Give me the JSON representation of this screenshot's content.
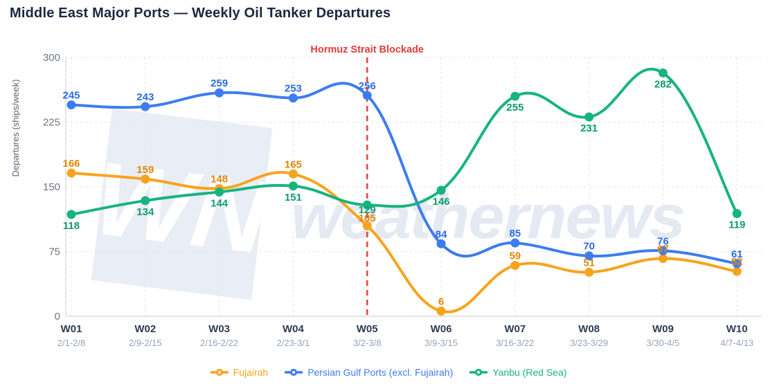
{
  "title": "Middle East Major Ports — Weekly Oil Tanker Departures",
  "watermark": {
    "logo_text": "WN",
    "brand_text": "weathernews",
    "logo_bg_color": "#e9edf5",
    "logo_text_color": "#ffffff",
    "brand_text_color": "#e4e9f2"
  },
  "annotation": {
    "label": "Hormuz Strait Blockade",
    "week_index": 4,
    "line_color": "#e8463f",
    "label_color": "#e23b3b"
  },
  "chart_data": {
    "type": "line",
    "title": "Middle East Major Ports — Weekly Oil Tanker Departures",
    "categories": [
      "W01",
      "W02",
      "W03",
      "W04",
      "W05",
      "W06",
      "W07",
      "W08",
      "W09",
      "W10"
    ],
    "category_dates": [
      "2/1-2/8",
      "2/9-2/15",
      "2/16-2/22",
      "2/23-3/1",
      "3/2-3/8",
      "3/9-3/15",
      "3/16-3/22",
      "3/23-3/29",
      "3/30-4/5",
      "4/7-4/13"
    ],
    "xlabel": "",
    "ylabel": "Departures (ships/week)",
    "ylim": [
      0,
      300
    ],
    "yticks": [
      0,
      75,
      150,
      225,
      300
    ],
    "grid": true,
    "legend_position": "bottom",
    "series": [
      {
        "name": "Fujairah",
        "color": "#f7a41c",
        "label_color": "#e1860a",
        "values": [
          166,
          159,
          148,
          165,
          105,
          6,
          59,
          51,
          67,
          52
        ],
        "label_anchor": "above",
        "label_offsets": {
          "4": 3
        }
      },
      {
        "name": "Persian Gulf Ports (excl. Fujairah)",
        "color": "#3d7cf0",
        "label_color": "#2c6be6",
        "values": [
          245,
          243,
          259,
          253,
          256,
          84,
          85,
          70,
          76,
          61
        ],
        "label_anchor": "above",
        "label_offsets": {}
      },
      {
        "name": "Yanbu (Red Sea)",
        "color": "#17b47e",
        "label_color": "#0f9c6b",
        "values": [
          118,
          134,
          144,
          151,
          129,
          146,
          255,
          231,
          282,
          119
        ],
        "label_anchor": "below",
        "label_offsets": {
          "4": -9
        }
      }
    ]
  },
  "axis_colors": {
    "tick_label": "#6d7585",
    "axis_line": "#d7dbe2",
    "grid_line": "#e4e7ec",
    "week_label": "#2f3b52",
    "date_label": "#97a3ba",
    "ylabel_color": "#5c6575"
  }
}
